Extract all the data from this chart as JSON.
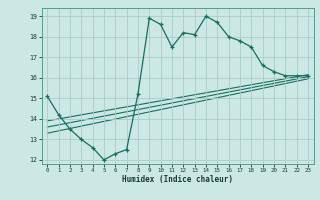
{
  "title": "",
  "xlabel": "Humidex (Indice chaleur)",
  "bg_color": "#cce8e4",
  "grid_color": "#aaccc8",
  "line_color": "#1a6b60",
  "xlim": [
    -0.5,
    23.5
  ],
  "ylim": [
    11.8,
    19.4
  ],
  "xticks": [
    0,
    1,
    2,
    3,
    4,
    5,
    6,
    7,
    8,
    9,
    10,
    11,
    12,
    13,
    14,
    15,
    16,
    17,
    18,
    19,
    20,
    21,
    22,
    23
  ],
  "yticks": [
    12,
    13,
    14,
    15,
    16,
    17,
    18,
    19
  ],
  "main_x": [
    0,
    1,
    2,
    3,
    4,
    5,
    6,
    7,
    8,
    9,
    10,
    11,
    12,
    13,
    14,
    15,
    16,
    17,
    18,
    19,
    20,
    21,
    22,
    23
  ],
  "main_y": [
    15.1,
    14.2,
    13.5,
    13.0,
    12.6,
    12.0,
    12.3,
    12.5,
    15.2,
    18.9,
    18.6,
    17.5,
    18.2,
    18.1,
    19.0,
    18.7,
    18.0,
    17.8,
    17.5,
    16.6,
    16.3,
    16.1,
    16.1,
    16.1
  ],
  "line1_x": [
    0,
    23
  ],
  "line1_y": [
    13.9,
    16.15
  ],
  "line2_x": [
    0,
    23
  ],
  "line2_y": [
    13.6,
    16.05
  ],
  "line3_x": [
    0,
    23
  ],
  "line3_y": [
    13.3,
    15.95
  ]
}
